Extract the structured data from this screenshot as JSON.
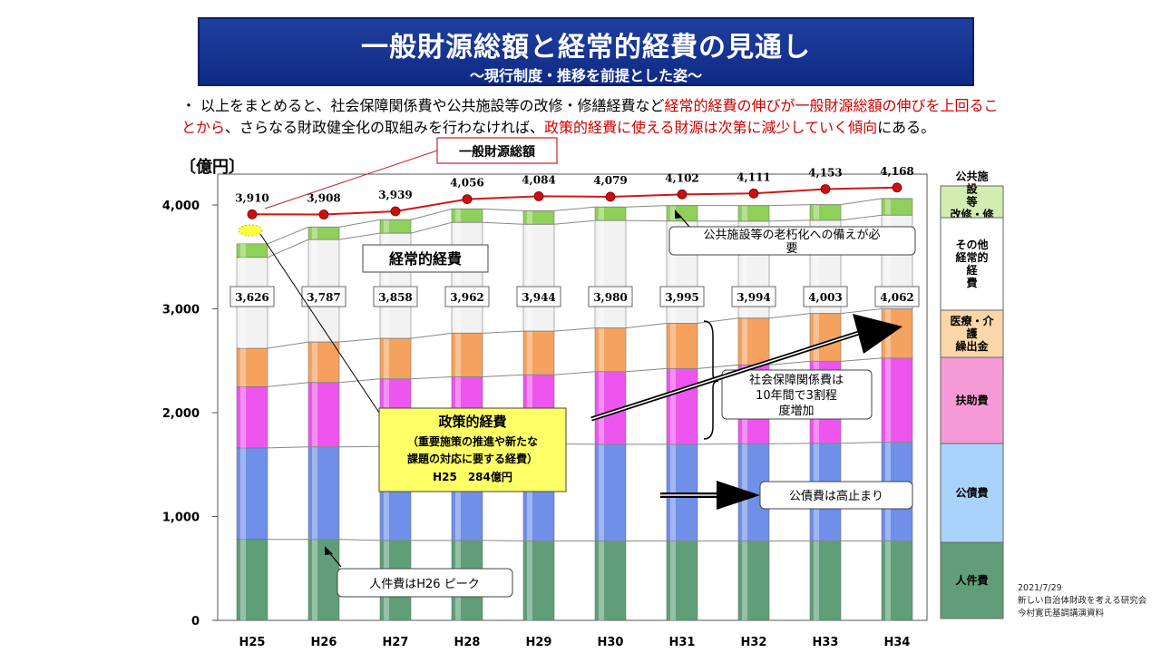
{
  "title": {
    "main": "一般財源総額と経常的経費の見通し",
    "sub": "～現行制度・推移を前提とした姿～"
  },
  "summary": {
    "bullet": "・",
    "part1": "以上をまとめると、社会保障関係費や公共施設等の改修・修繕経費など",
    "part2_red": "経常的経費の伸びが一般財源総額の伸びを上回ることから",
    "part3": "、さらなる財政健全化の取組みを行わなければ、",
    "part4_red": "政策的経費に使える財源は次第に減少していく傾向",
    "part5": "にある。"
  },
  "unit_label": "〔億円〕",
  "chart_data": {
    "type": "bar",
    "stacked": true,
    "categories": [
      "H25",
      "H26",
      "H27",
      "H28",
      "H29",
      "H30",
      "H31",
      "H32",
      "H33",
      "H34"
    ],
    "ylim": [
      0,
      4000
    ],
    "yticks": [
      0,
      1000,
      2000,
      3000,
      4000
    ],
    "ytick_labels": [
      "0",
      "1,000",
      "2,000",
      "3,000",
      "4,000"
    ],
    "series": [
      {
        "name": "人件費",
        "color": "#5f9e79",
        "values": [
          780,
          780,
          770,
          770,
          765,
          765,
          765,
          765,
          765,
          765
        ]
      },
      {
        "name": "公債費",
        "color": "#6f8fe8",
        "values": [
          880,
          890,
          905,
          925,
          935,
          930,
          930,
          935,
          940,
          950
        ]
      },
      {
        "name": "扶助費",
        "color": "#ee55ee",
        "values": [
          590,
          620,
          650,
          650,
          665,
          700,
          730,
          760,
          790,
          810
        ]
      },
      {
        "name": "医療・介護繰出金",
        "color": "#f5a25f",
        "values": [
          370,
          390,
          390,
          420,
          420,
          420,
          435,
          450,
          460,
          475
        ]
      },
      {
        "name": "その他経常的経費",
        "color": "#f2f2f2",
        "values": [
          875,
          987,
          1013,
          1067,
          1029,
          1035,
          985,
          934,
          898,
          902
        ]
      },
      {
        "name": "公共施設等改修・修繕",
        "color": "#8fd05a",
        "values": [
          131,
          120,
          130,
          130,
          130,
          130,
          150,
          150,
          150,
          160
        ]
      }
    ],
    "keizai_totals": [
      3626,
      3787,
      3858,
      3962,
      3944,
      3980,
      3995,
      3994,
      4003,
      4062
    ],
    "keizai_total_labels": [
      "3,626",
      "3,787",
      "3,858",
      "3,962",
      "3,944",
      "3,980",
      "3,995",
      "3,994",
      "4,003",
      "4,062"
    ],
    "ippan_line": {
      "name": "一般財源総額",
      "color": "#d01818",
      "values": [
        3910,
        3908,
        3939,
        4056,
        4084,
        4079,
        4102,
        4111,
        4153,
        4168
      ],
      "labels": [
        "3,910",
        "3,908",
        "3,939",
        "4,056",
        "4,084",
        "4,079",
        "4,102",
        "4,111",
        "4,153",
        "4,168"
      ]
    },
    "legend_placement": "right",
    "legend": [
      {
        "label": "人件費",
        "color": "#5f9e79"
      },
      {
        "label": "公債費",
        "color": "#a9d3fb"
      },
      {
        "label": "扶助費",
        "color": "#f59ad6"
      },
      {
        "label": "医療・介護繰出金",
        "color": "#fbd6a8"
      },
      {
        "label": "その他経常的経費",
        "color": "#ffffff"
      },
      {
        "label": "公共施設等改修・修繕",
        "color": "#d3ecb0"
      }
    ]
  },
  "annotations": {
    "ippan_label": "一般財源総額",
    "keijo_label": "経常的経費",
    "koukyou_note": "公共施設等の老朽化への備えが必要",
    "shakai_note": "社会保障関係費は10年間で3割程度増加",
    "kousai_note": "公債費は高止まり",
    "jinken_note": "人件費はH26 ピーク",
    "seisaku_title": "政策的経費",
    "seisaku_line1": "（重要施策の推進や新たな",
    "seisaku_line2": "課題の対応に要する経費）",
    "seisaku_line3": "H25　284億円"
  },
  "footer": {
    "date": "2021/7/29",
    "org": "新しい自治体財政を考える研究会",
    "source": "今村寛氏基調講演資料"
  }
}
